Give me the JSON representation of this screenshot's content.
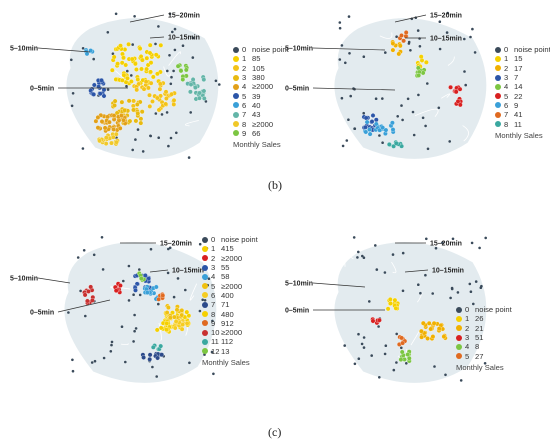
{
  "figure_labels": {
    "b": "(b)",
    "c": "(c)"
  },
  "chart_data": [
    {
      "type": "scatter",
      "ring_labels": [
        "15–20min",
        "10–15min",
        "5–10min",
        "0–5min"
      ],
      "legend_title": "Monthly Sales",
      "clusters": [
        {
          "code": "0",
          "value": "noise point",
          "color": "#3a4a5a"
        },
        {
          "code": "1",
          "value": "85",
          "color": "#f5d000"
        },
        {
          "code": "2",
          "value": "105",
          "color": "#f3c318"
        },
        {
          "code": "3",
          "value": "380",
          "color": "#e8ba10"
        },
        {
          "code": "4",
          "value": "≥2000",
          "color": "#e2a018"
        },
        {
          "code": "5",
          "value": "39",
          "color": "#2b55a8"
        },
        {
          "code": "6",
          "value": "40",
          "color": "#3aa0d8"
        },
        {
          "code": "7",
          "value": "43",
          "color": "#63b5a8"
        },
        {
          "code": "8",
          "value": "≥2000",
          "color": "#f0c828"
        },
        {
          "code": "9",
          "value": "66",
          "color": "#7cc642"
        }
      ]
    },
    {
      "type": "scatter",
      "ring_labels": [
        "15–20min",
        "10–15min",
        "5–10min",
        "0–5min"
      ],
      "legend_title": "Monthly Sales",
      "clusters": [
        {
          "code": "0",
          "value": "noise point",
          "color": "#3a4a5a"
        },
        {
          "code": "1",
          "value": "15",
          "color": "#f5d000"
        },
        {
          "code": "2",
          "value": "17",
          "color": "#f0b000"
        },
        {
          "code": "3",
          "value": "7",
          "color": "#2b55a8"
        },
        {
          "code": "4",
          "value": "14",
          "color": "#7cc642"
        },
        {
          "code": "5",
          "value": "22",
          "color": "#d82020"
        },
        {
          "code": "6",
          "value": "9",
          "color": "#3aa0d8"
        },
        {
          "code": "7",
          "value": "41",
          "color": "#e06a20"
        },
        {
          "code": "8",
          "value": "11",
          "color": "#3aa8a0"
        }
      ]
    },
    {
      "type": "scatter",
      "ring_labels": [
        "15–20min",
        "10–15min",
        "5–10min",
        "0–5min"
      ],
      "legend_title": "Monthly Sales",
      "clusters": [
        {
          "code": "0",
          "value": "noise point",
          "color": "#3a4a5a"
        },
        {
          "code": "1",
          "value": "415",
          "color": "#f5d000"
        },
        {
          "code": "2",
          "value": "≥2000",
          "color": "#d82020"
        },
        {
          "code": "3",
          "value": "55",
          "color": "#2b55a8"
        },
        {
          "code": "4",
          "value": "58",
          "color": "#3aa0d8"
        },
        {
          "code": "5",
          "value": "≥2000",
          "color": "#f0c010"
        },
        {
          "code": "6",
          "value": "400",
          "color": "#f5cc20"
        },
        {
          "code": "7",
          "value": "71",
          "color": "#2b4a8a"
        },
        {
          "code": "8",
          "value": "480",
          "color": "#f5d000"
        },
        {
          "code": "9",
          "value": "912",
          "color": "#e06a20"
        },
        {
          "code": "10",
          "value": "≥2000",
          "color": "#c83030"
        },
        {
          "code": "11",
          "value": "112",
          "color": "#3aa8a0"
        },
        {
          "code": "12",
          "value": "13",
          "color": "#7cc642"
        }
      ]
    },
    {
      "type": "scatter",
      "ring_labels": [
        "15–20min",
        "10–15min",
        "5–10min",
        "0–5min"
      ],
      "legend_title": "Monthly Sales",
      "clusters": [
        {
          "code": "0",
          "value": "noise point",
          "color": "#3a4a5a"
        },
        {
          "code": "1",
          "value": "26",
          "color": "#f5d000"
        },
        {
          "code": "2",
          "value": "21",
          "color": "#f0b000"
        },
        {
          "code": "3",
          "value": "51",
          "color": "#d82020"
        },
        {
          "code": "4",
          "value": "8",
          "color": "#7cc642"
        },
        {
          "code": "5",
          "value": "27",
          "color": "#e06a20"
        }
      ]
    }
  ]
}
